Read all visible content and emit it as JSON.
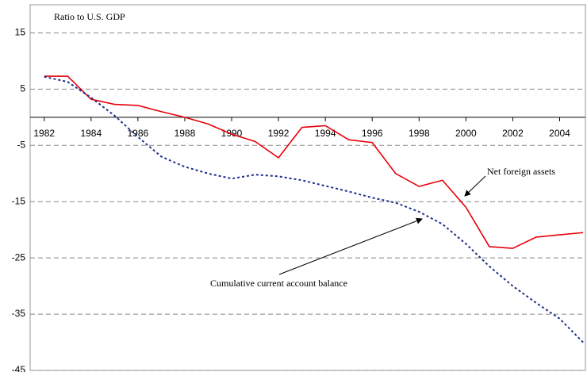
{
  "chart_data": {
    "type": "line",
    "y_label": "Ratio to U.S. GDP",
    "x": [
      1982,
      1983,
      1984,
      1985,
      1986,
      1987,
      1988,
      1989,
      1990,
      1991,
      1992,
      1993,
      1994,
      1995,
      1996,
      1997,
      1998,
      1999,
      2000,
      2001,
      2002,
      2003,
      2004,
      2005
    ],
    "series": [
      {
        "name": "Net foreign assets",
        "color": "#e8000b",
        "dash": false,
        "values": [
          7.3,
          7.3,
          3.2,
          2.3,
          2.1,
          1,
          0,
          -1.2,
          -3,
          -4.3,
          -7.2,
          -1.8,
          -1.5,
          -4,
          -4.5,
          -10,
          -12.3,
          -11.2,
          -16,
          -23,
          -23.3,
          -21.3,
          -20.9,
          -20.5
        ]
      },
      {
        "name": "Cumulative current account balance",
        "color": "#1f2f8a",
        "dash": true,
        "values": [
          7.2,
          6.3,
          3.5,
          0.3,
          -3.5,
          -7,
          -8.8,
          -10,
          -10.9,
          -10.2,
          -10.5,
          -11.2,
          -12.2,
          -13.2,
          -14.3,
          -15.2,
          -16.8,
          -19,
          -22.5,
          -26.5,
          -30,
          -33,
          -35.8,
          -40
        ]
      }
    ],
    "xlim": [
      1981.4,
      2005.1
    ],
    "xticks": [
      1982,
      1984,
      1986,
      1988,
      1990,
      1992,
      1994,
      1996,
      1998,
      2000,
      2002,
      2004
    ],
    "ylim": [
      -45,
      20
    ],
    "yticks": [
      15,
      5,
      -5,
      -15,
      -25,
      -35,
      -45
    ],
    "grid": true
  }
}
